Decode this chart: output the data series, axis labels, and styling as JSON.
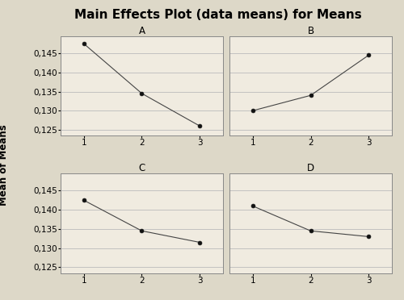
{
  "title": "Main Effects Plot (data means) for Means",
  "ylabel": "Mean of Means",
  "subplots": [
    {
      "label": "A",
      "x": [
        1,
        2,
        3
      ],
      "y": [
        0.1475,
        0.1345,
        0.126
      ]
    },
    {
      "label": "B",
      "x": [
        1,
        2,
        3
      ],
      "y": [
        0.13,
        0.134,
        0.1445
      ]
    },
    {
      "label": "C",
      "x": [
        1,
        2,
        3
      ],
      "y": [
        0.1425,
        0.1345,
        0.1315
      ]
    },
    {
      "label": "D",
      "x": [
        1,
        2,
        3
      ],
      "y": [
        0.141,
        0.1345,
        0.133
      ]
    }
  ],
  "ylim": [
    0.1235,
    0.1495
  ],
  "yticks": [
    0.125,
    0.13,
    0.135,
    0.14,
    0.145
  ],
  "xticks": [
    1,
    2,
    3
  ],
  "bg_color": "#ddd8c8",
  "panel_bg": "#f0ebe0",
  "grid_color": "#bbbbbb",
  "line_color": "#444444",
  "marker_color": "#111111",
  "title_fontsize": 11,
  "label_fontsize": 8.5,
  "tick_fontsize": 7.5
}
